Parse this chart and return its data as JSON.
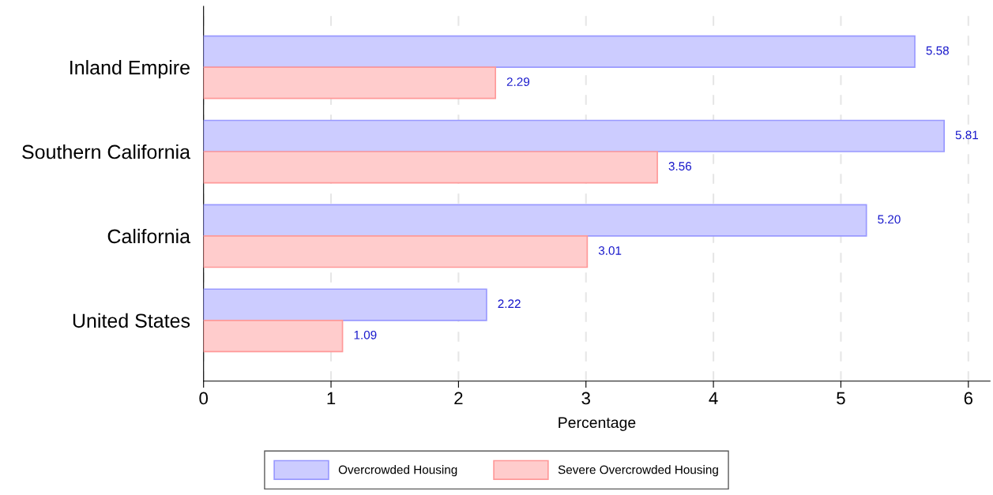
{
  "chart_data": {
    "type": "bar",
    "orientation": "horizontal",
    "xlabel": "Percentage",
    "categories": [
      "Inland Empire",
      "Southern California",
      "California",
      "United States"
    ],
    "series": [
      {
        "name": "Overcrowded Housing",
        "color": "#ccccff",
        "values": [
          5.58,
          5.81,
          5.2,
          2.22
        ],
        "value_labels": [
          "5.58",
          "5.81",
          "5.20",
          "2.22"
        ]
      },
      {
        "name": "Severe Overcrowded Housing",
        "color": "#ffcccc",
        "values": [
          2.29,
          3.56,
          3.01,
          1.09
        ],
        "value_labels": [
          "2.29",
          "3.56",
          "3.01",
          "1.09"
        ]
      }
    ],
    "xlim": [
      0,
      6.17
    ],
    "xticks": [
      0,
      1,
      2,
      3,
      4,
      5,
      6
    ],
    "grid": "x",
    "legend": "bottom"
  }
}
